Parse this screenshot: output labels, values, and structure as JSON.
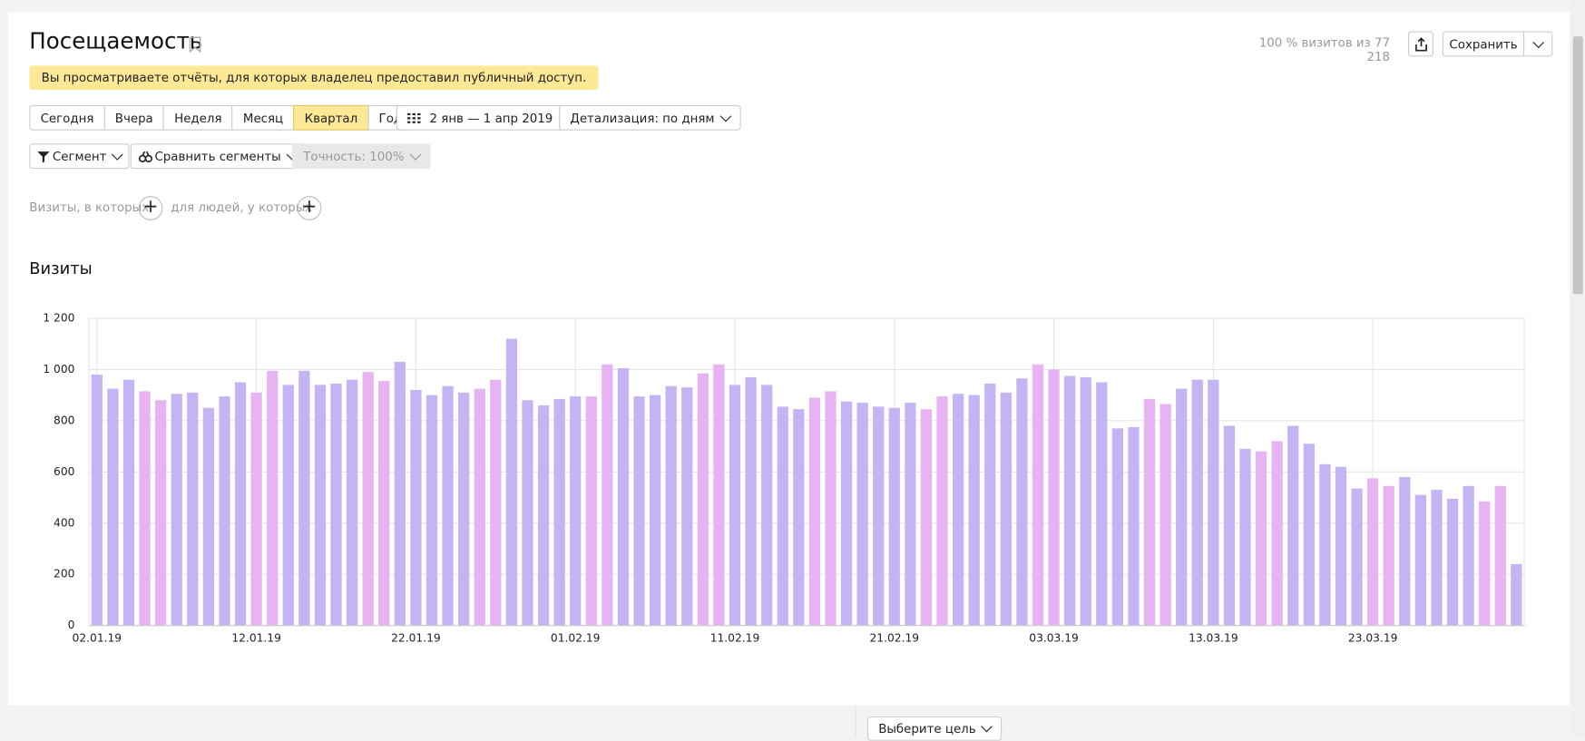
{
  "header": {
    "title": "Посещаемость",
    "stats": "100 % визитов из 77 218",
    "save": "Сохранить"
  },
  "notice": "Вы просматриваете отчёты, для которых владелец предоставил публичный доступ.",
  "periods": {
    "items": [
      "Сегодня",
      "Вчера",
      "Неделя",
      "Месяц",
      "Квартал",
      "Год"
    ],
    "active_index": 4
  },
  "date_range": "2 янв — 1 апр 2019",
  "detail": "Детализация: по дням",
  "segment": "Сегмент",
  "compare": "Сравнить сегменты",
  "accuracy": "Точность: 100%",
  "conditions": {
    "visits": "Визиты, в которых",
    "people": "для людей, у которых"
  },
  "chart_data": {
    "type": "bar",
    "title": "Визиты",
    "categories": [
      "02.01.19",
      null,
      null,
      null,
      null,
      null,
      null,
      null,
      null,
      null,
      "12.01.19",
      null,
      null,
      null,
      null,
      null,
      null,
      null,
      null,
      null,
      "22.01.19",
      null,
      null,
      null,
      null,
      null,
      null,
      null,
      null,
      null,
      "01.02.19",
      null,
      null,
      null,
      null,
      null,
      null,
      null,
      null,
      null,
      "11.02.19",
      null,
      null,
      null,
      null,
      null,
      null,
      null,
      null,
      null,
      "21.02.19",
      null,
      null,
      null,
      null,
      null,
      null,
      null,
      null,
      null,
      "03.03.19",
      null,
      null,
      null,
      null,
      null,
      null,
      null,
      null,
      null,
      "13.03.19",
      null,
      null,
      null,
      null,
      null,
      null,
      null,
      null,
      null,
      "23.03.19",
      null,
      null,
      null,
      null,
      null,
      null,
      null,
      null,
      null
    ],
    "values": [
      980,
      925,
      960,
      915,
      880,
      905,
      910,
      850,
      895,
      950,
      910,
      995,
      940,
      995,
      940,
      945,
      960,
      990,
      955,
      1030,
      920,
      900,
      935,
      910,
      925,
      960,
      1120,
      880,
      860,
      885,
      895,
      895,
      1020,
      1005,
      895,
      900,
      935,
      930,
      985,
      1020,
      940,
      970,
      940,
      855,
      845,
      890,
      915,
      875,
      870,
      855,
      850,
      870,
      845,
      895,
      905,
      900,
      945,
      910,
      965,
      1020,
      1000,
      975,
      970,
      950,
      770,
      775,
      885,
      865,
      925,
      960,
      960,
      780,
      690,
      680,
      720,
      780,
      710,
      630,
      620,
      535,
      575,
      545,
      580,
      510,
      530,
      495,
      545,
      485,
      545,
      240
    ],
    "weekday_color": "#c5b4f4",
    "weekend_color": "#e8b3f3",
    "weekend_label_color": "#8b2a2a",
    "weekend": [
      false,
      false,
      false,
      true,
      true,
      false,
      false,
      false,
      false,
      false,
      true,
      true,
      false,
      false,
      false,
      false,
      false,
      true,
      true,
      false,
      false,
      false,
      false,
      false,
      true,
      true,
      false,
      false,
      false,
      false,
      false,
      true,
      true,
      false,
      false,
      false,
      false,
      false,
      true,
      true,
      false,
      false,
      false,
      false,
      false,
      true,
      true,
      false,
      false,
      false,
      false,
      false,
      true,
      true,
      false,
      false,
      false,
      false,
      false,
      true,
      true,
      false,
      false,
      false,
      false,
      false,
      true,
      true,
      false,
      false,
      false,
      false,
      false,
      true,
      true,
      false,
      false,
      false,
      false,
      false,
      true,
      true,
      false,
      false,
      false,
      false,
      false,
      true,
      true,
      false
    ],
    "ylim": [
      0,
      1200
    ],
    "yticks": [
      0,
      200,
      400,
      600,
      800,
      {
        "value": 1000,
        "label": "1 000"
      },
      {
        "value": 1200,
        "label": "1 200"
      }
    ],
    "grid": true
  },
  "footer": {
    "goal": "Выберите цель"
  }
}
